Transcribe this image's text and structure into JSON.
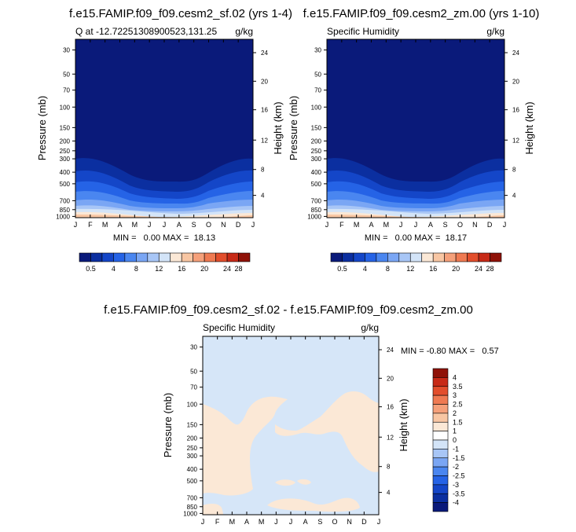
{
  "months": [
    "J",
    "F",
    "M",
    "A",
    "M",
    "J",
    "J",
    "A",
    "S",
    "O",
    "N",
    "D",
    "J"
  ],
  "pressure_ticks": [
    "30",
    "50",
    "70",
    "100",
    "150",
    "200",
    "250",
    "300",
    "400",
    "500",
    "700",
    "850",
    "1000"
  ],
  "height_ticks": [
    "24",
    "20",
    "16",
    "12",
    "8",
    "4"
  ],
  "colorbar_h": {
    "labels": [
      "0.5",
      "4",
      "8",
      "12",
      "16",
      "20",
      "24",
      "28"
    ],
    "colors": [
      "#0a1a7a",
      "#0b2fa0",
      "#1446c8",
      "#2563e6",
      "#4a86f0",
      "#7aa6f4",
      "#a8c6f6",
      "#d3e4f8",
      "#fbe8d6",
      "#f8c6a3",
      "#f5a07a",
      "#ef7a52",
      "#e24e2c",
      "#c72a17",
      "#8f1208"
    ]
  },
  "colorbar_v": {
    "labels": [
      "4",
      "3.5",
      "3",
      "2.5",
      "2",
      "1.5",
      "1",
      "0",
      "-1",
      "-1.5",
      "-2",
      "-2.5",
      "-3",
      "-3.5",
      "-4"
    ],
    "colors": [
      "#8f1208",
      "#c72a17",
      "#e24e2c",
      "#ef7a52",
      "#f5a07a",
      "#f8c6a3",
      "#fbe8d6",
      "#ffffff",
      "#d3e4f8",
      "#a8c6f6",
      "#7aa6f4",
      "#4a86f0",
      "#2563e6",
      "#1446c8",
      "#0b2fa0",
      "#0a1a7a"
    ]
  },
  "chart_data": [
    {
      "type": "heatmap",
      "title": "f.e15.FAMIP.f09_f09.cesm2_sf.02 (yrs 1-4)",
      "subtitle_left": "Q at -12.72251308900523,131.25",
      "subtitle_right": "g/kg",
      "xlabel": "",
      "ylabel": "Pressure (mb)",
      "ylabel_right": "Height (km)",
      "stats": "MIN =   0.00 MAX =  18.13",
      "min": 0.0,
      "max": 18.13,
      "x": [
        "J",
        "F",
        "M",
        "A",
        "M",
        "J",
        "J",
        "A",
        "S",
        "O",
        "N",
        "D",
        "J"
      ],
      "boundary_300_level_pressure_mb": [
        300,
        310,
        330,
        370,
        410,
        420,
        430,
        430,
        420,
        380,
        340,
        300,
        300
      ]
    },
    {
      "type": "heatmap",
      "title": "f.e15.FAMIP.f09_f09.cesm2_zm.00 (yrs 1-10)",
      "subtitle_left": "Specific Humidity",
      "subtitle_right": "g/kg",
      "xlabel": "",
      "ylabel": "Pressure (mb)",
      "ylabel_right": "Height (km)",
      "stats": "MIN =   0.00 MAX =  18.17",
      "min": 0.0,
      "max": 18.17,
      "x": [
        "J",
        "F",
        "M",
        "A",
        "M",
        "J",
        "J",
        "A",
        "S",
        "O",
        "N",
        "D",
        "J"
      ],
      "boundary_300_level_pressure_mb": [
        300,
        310,
        330,
        370,
        410,
        420,
        430,
        430,
        420,
        380,
        340,
        300,
        300
      ]
    },
    {
      "type": "heatmap",
      "title": "f.e15.FAMIP.f09_f09.cesm2_sf.02 - f.e15.FAMIP.f09_f09.cesm2_zm.00",
      "subtitle_left": "Specific Humidity",
      "subtitle_right": "g/kg",
      "xlabel": "",
      "ylabel": "Pressure (mb)",
      "ylabel_right": "Height (km)",
      "stats": "MIN = -0.80 MAX =   0.57",
      "min": -0.8,
      "max": 0.57,
      "x": [
        "J",
        "F",
        "M",
        "A",
        "M",
        "J",
        "J",
        "A",
        "S",
        "O",
        "N",
        "D",
        "J"
      ]
    }
  ]
}
